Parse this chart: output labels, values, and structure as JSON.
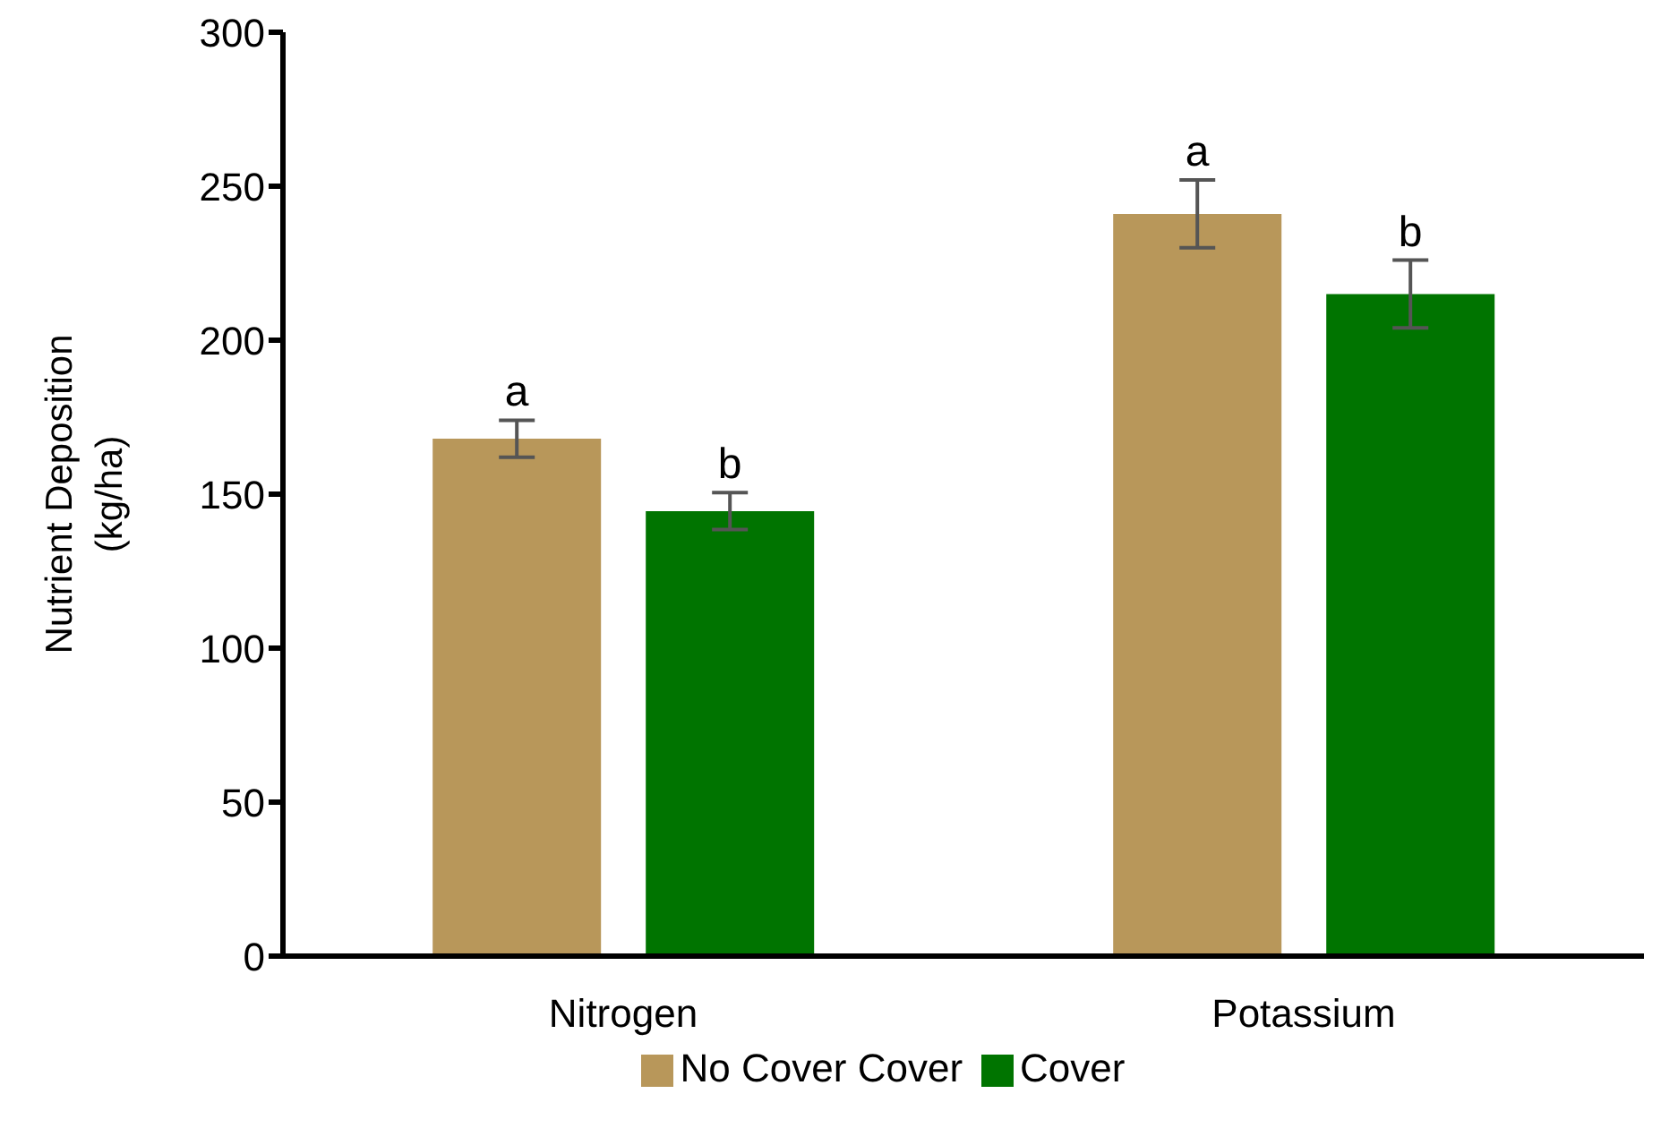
{
  "chart_data": {
    "type": "bar",
    "ylabel": "Nutrient Deposition (kg/ha)",
    "categories": [
      "Nitrogen",
      "Potassium"
    ],
    "series": [
      {
        "name": "No Cover Cover",
        "color": "#b8975a",
        "values": [
          168,
          241
        ],
        "errors": [
          6,
          11
        ],
        "value_labels": [
          "a",
          "a"
        ]
      },
      {
        "name": "Cover",
        "color": "#007400",
        "values": [
          144.5,
          215
        ],
        "errors": [
          6,
          11
        ],
        "value_labels": [
          "b",
          "b"
        ]
      }
    ],
    "ylim": [
      0,
      300
    ],
    "yticks": [
      0,
      50,
      100,
      150,
      200,
      250,
      300
    ],
    "grid": false,
    "legend": "bottom"
  }
}
